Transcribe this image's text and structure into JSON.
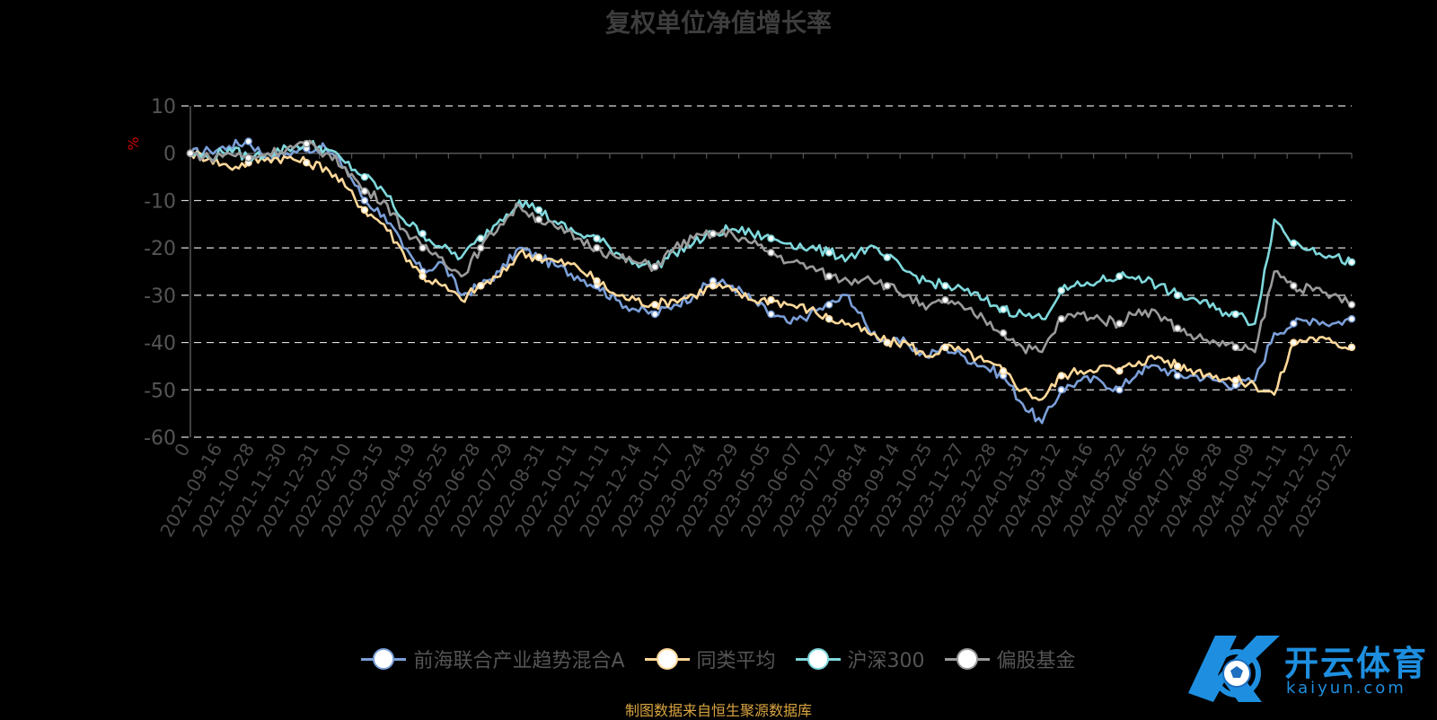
{
  "chart_data": {
    "type": "line",
    "title": "复权单位净值增长率",
    "ylabel": "%",
    "ylim": [
      -60,
      10
    ],
    "y_ticks": [
      "10",
      "0",
      "-10",
      "-20",
      "-30",
      "-40",
      "-50",
      "-60"
    ],
    "x_ticks": [
      "0",
      "2021-09-16",
      "2021-10-28",
      "2021-11-30",
      "2021-12-31",
      "2022-02-10",
      "2022-03-15",
      "2022-04-19",
      "2022-05-25",
      "2022-06-28",
      "2022-07-29",
      "2022-08-31",
      "2022-10-11",
      "2022-11-11",
      "2022-12-14",
      "2023-01-17",
      "2023-02-24",
      "2023-03-29",
      "2023-05-05",
      "2023-06-07",
      "2023-07-12",
      "2023-08-14",
      "2023-09-14",
      "2023-10-25",
      "2023-11-27",
      "2023-12-28",
      "2024-01-31",
      "2024-03-12",
      "2024-04-16",
      "2024-05-22",
      "2024-06-25",
      "2024-07-26",
      "2024-08-28",
      "2024-10-09",
      "2024-11-11",
      "2024-12-12",
      "2025-01-22"
    ],
    "grid": "dashed horizontal",
    "legend_position": "bottom",
    "series": [
      {
        "name": "前海联合产业趋势混合A",
        "color": "#7b9fd8",
        "values": [
          0,
          0.5,
          1.5,
          2.5,
          -1,
          0,
          1,
          1,
          -3,
          -10,
          -13,
          -20,
          -25,
          -23,
          -30,
          -28,
          -25,
          -20,
          -22,
          -24,
          -26,
          -28,
          -31,
          -33,
          -34,
          -32,
          -30,
          -27,
          -28,
          -31,
          -34,
          -36,
          -34,
          -32,
          -30,
          -37,
          -40,
          -40,
          -43,
          -41,
          -43,
          -45,
          -47,
          -53,
          -57,
          -50,
          -48,
          -48,
          -50,
          -46,
          -45,
          -47,
          -47,
          -48,
          -49,
          -48,
          -38,
          -36,
          -35,
          -36,
          -35
        ]
      },
      {
        "name": "同类平均",
        "color": "#ffd89a",
        "values": [
          0,
          -1,
          -3,
          -2,
          -1,
          -1,
          -2,
          -3,
          -7,
          -12,
          -15,
          -21,
          -26,
          -28,
          -31,
          -28,
          -26,
          -21,
          -22,
          -23,
          -24,
          -27,
          -30,
          -31,
          -32,
          -31,
          -30,
          -28,
          -29,
          -31,
          -31,
          -32,
          -33,
          -35,
          -36,
          -38,
          -40,
          -40,
          -43,
          -41,
          -42,
          -44,
          -46,
          -50,
          -52,
          -47,
          -46,
          -45,
          -46,
          -44,
          -43,
          -45,
          -46,
          -47,
          -48,
          -49,
          -51,
          -40,
          -39,
          -40,
          -41
        ]
      },
      {
        "name": "沪深300",
        "color": "#7fd8dc",
        "values": [
          0,
          -1,
          1,
          -1,
          0,
          1,
          2,
          1,
          -2,
          -5,
          -8,
          -14,
          -17,
          -20,
          -22,
          -18,
          -14,
          -10,
          -12,
          -15,
          -17,
          -18,
          -21,
          -23,
          -24,
          -21,
          -19,
          -17,
          -16,
          -17,
          -18,
          -19,
          -20,
          -21,
          -22,
          -20,
          -22,
          -25,
          -27,
          -28,
          -29,
          -31,
          -33,
          -34,
          -35,
          -29,
          -28,
          -27,
          -26,
          -26,
          -28,
          -30,
          -31,
          -33,
          -34,
          -36,
          -14,
          -19,
          -20,
          -22,
          -23
        ]
      },
      {
        "name": "偏股基金",
        "color": "#9a9a9a",
        "values": [
          0,
          -1,
          0,
          -1,
          0,
          1,
          2,
          0,
          -3,
          -8,
          -10,
          -16,
          -20,
          -22,
          -26,
          -20,
          -15,
          -11,
          -14,
          -16,
          -18,
          -20,
          -22,
          -23,
          -24,
          -20,
          -18,
          -17,
          -17,
          -19,
          -21,
          -23,
          -24,
          -26,
          -27,
          -26,
          -28,
          -30,
          -33,
          -31,
          -33,
          -35,
          -38,
          -41,
          -42,
          -35,
          -34,
          -35,
          -36,
          -33,
          -34,
          -37,
          -39,
          -40,
          -41,
          -42,
          -25,
          -28,
          -29,
          -30,
          -32
        ]
      }
    ]
  },
  "legend": {
    "items": [
      "前海联合产业趋势混合A",
      "同类平均",
      "沪深300",
      "偏股基金"
    ]
  },
  "source": "制图数据来自恒生聚源数据库",
  "logo": {
    "name": "开云体育",
    "sub": "kaiyun.com",
    "color": "#1e8fe0"
  }
}
